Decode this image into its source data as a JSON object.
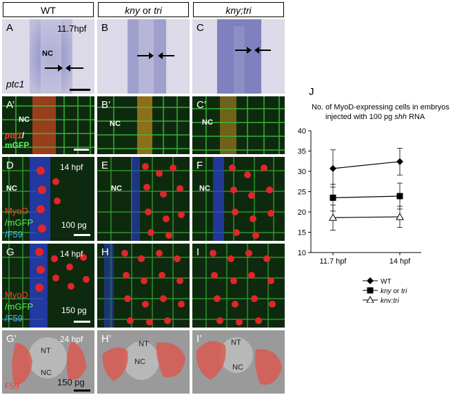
{
  "columns": [
    {
      "id": "wt",
      "text": "WT"
    },
    {
      "id": "mut",
      "parts": [
        "kny",
        " or ",
        "tri"
      ]
    },
    {
      "id": "double",
      "text": "kny;tri"
    }
  ],
  "panels": {
    "A": {
      "label": "A",
      "stage": "11.7hpf",
      "nc": "NC",
      "gene": "ptc1"
    },
    "B": {
      "label": "B"
    },
    "C": {
      "label": "C"
    },
    "A2": {
      "label": "A’",
      "nc": "NC",
      "marker1": "ptc1",
      "marker2": "/",
      "marker3": "mGFP"
    },
    "B2": {
      "label": "B’",
      "nc": "NC"
    },
    "C2": {
      "label": "C’",
      "nc": "NC"
    },
    "D": {
      "label": "D",
      "stage": "14 hpf",
      "nc": "NC",
      "m1": "MyoD",
      "m2": "/mGFP",
      "m3": "/F59",
      "dose": "100 pg"
    },
    "E": {
      "label": "E",
      "nc": "NC"
    },
    "F": {
      "label": "F",
      "nc": "NC"
    },
    "G": {
      "label": "G",
      "stage": "14 hpf",
      "m1": "MyoD",
      "m2": "/mGFP",
      "m3": "/F59",
      "dose": "150 pg"
    },
    "H": {
      "label": "H"
    },
    "I": {
      "label": "I"
    },
    "G2": {
      "label": "G’",
      "stage": "24 hpf",
      "nt": "NT",
      "nc": "NC",
      "marker": "F59",
      "dose": "150 pg"
    },
    "H2": {
      "label": "H’",
      "nt": "NT",
      "nc": "NC"
    },
    "I2": {
      "label": "I’",
      "nt": "NT",
      "nc": "NC"
    }
  },
  "chart_data": {
    "type": "line",
    "panel_label": "J",
    "title_line1": "No. of MyoD-expressing cells in embryos",
    "title_line2_pre": "injected with 100 pg ",
    "title_line2_it": "shh",
    "title_line2_post": " RNA",
    "categories": [
      "11.7 hpf",
      "14 hpf"
    ],
    "ylim": [
      10,
      40
    ],
    "yticks": [
      10,
      15,
      20,
      25,
      30,
      35,
      40
    ],
    "series": [
      {
        "name": "WT",
        "values": [
          30.7,
          32.4
        ],
        "err": [
          4.6,
          3.3
        ],
        "marker": "diamond"
      },
      {
        "name": "kny or tri",
        "values": [
          23.5,
          23.9
        ],
        "err": [
          3.3,
          3.2
        ],
        "marker": "square"
      },
      {
        "name": "kny;tri",
        "values": [
          18.6,
          18.8
        ],
        "err": [
          3.1,
          2.6
        ],
        "marker": "triangle"
      }
    ],
    "legend": [
      {
        "parts": [
          {
            "t": "WT",
            "i": false
          }
        ]
      },
      {
        "parts": [
          {
            "t": "kny",
            "i": true
          },
          {
            "t": " or ",
            "i": false
          },
          {
            "t": "tri",
            "i": true
          }
        ]
      },
      {
        "parts": [
          {
            "t": "kny;tri",
            "i": true
          }
        ]
      }
    ]
  }
}
